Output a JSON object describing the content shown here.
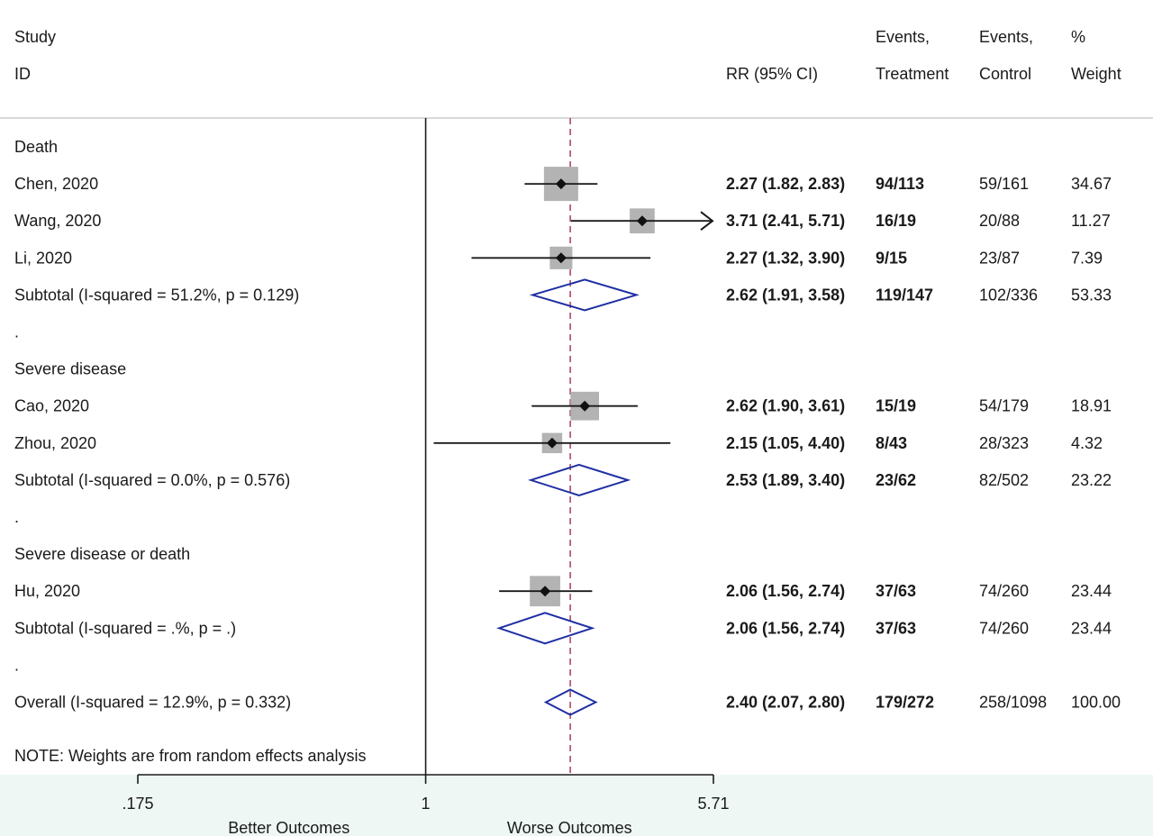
{
  "chart_data": {
    "type": "forest",
    "headers": {
      "study_line1": "Study",
      "study_line2": "ID",
      "rr": "RR (95% CI)",
      "events_t_line1": "Events,",
      "events_t_line2": "Treatment",
      "events_c_line1": "Events,",
      "events_c_line2": "Control",
      "weight_line1": "%",
      "weight_line2": "Weight"
    },
    "scale": "log",
    "xlim": [
      0.175,
      5.71
    ],
    "reference_line": 1,
    "overall_line": 2.4,
    "x_ticks": [
      {
        "value": 0.175,
        "label": ".175"
      },
      {
        "value": 1,
        "label": "1"
      },
      {
        "value": 5.71,
        "label": "5.71"
      }
    ],
    "direction_labels": {
      "left": "Better Outcomes",
      "right": "Worse Outcomes"
    },
    "note": "NOTE: Weights are from random effects analysis",
    "rows": [
      {
        "kind": "group",
        "label": "Death"
      },
      {
        "kind": "study",
        "label": "Chen, 2020",
        "rr": 2.27,
        "lo": 1.82,
        "hi": 2.83,
        "ci_text": "2.27 (1.82, 2.83)",
        "events_t": "94/113",
        "events_c": "59/161",
        "weight": "34.67"
      },
      {
        "kind": "study",
        "label": "Wang, 2020",
        "rr": 3.71,
        "lo": 2.41,
        "hi": 5.71,
        "ci_text": "3.71 (2.41, 5.71)",
        "events_t": "16/19",
        "events_c": "20/88",
        "weight": "11.27"
      },
      {
        "kind": "study",
        "label": "Li, 2020",
        "rr": 2.27,
        "lo": 1.32,
        "hi": 3.9,
        "ci_text": "2.27 (1.32, 3.90)",
        "events_t": "9/15",
        "events_c": "23/87",
        "weight": "7.39"
      },
      {
        "kind": "subtotal",
        "label": "Subtotal  (I-squared = 51.2%, p = 0.129)",
        "rr": 2.62,
        "lo": 1.91,
        "hi": 3.58,
        "ci_text": "2.62 (1.91, 3.58)",
        "events_t": "119/147",
        "events_c": "102/336",
        "weight": "53.33"
      },
      {
        "kind": "spacer",
        "label": "."
      },
      {
        "kind": "group",
        "label": "Severe disease"
      },
      {
        "kind": "study",
        "label": "Cao, 2020",
        "rr": 2.62,
        "lo": 1.9,
        "hi": 3.61,
        "ci_text": "2.62 (1.90, 3.61)",
        "events_t": "15/19",
        "events_c": "54/179",
        "weight": "18.91"
      },
      {
        "kind": "study",
        "label": "Zhou, 2020",
        "rr": 2.15,
        "lo": 1.05,
        "hi": 4.4,
        "ci_text": "2.15 (1.05, 4.40)",
        "events_t": "8/43",
        "events_c": "28/323",
        "weight": "4.32"
      },
      {
        "kind": "subtotal",
        "label": "Subtotal  (I-squared = 0.0%, p = 0.576)",
        "rr": 2.53,
        "lo": 1.89,
        "hi": 3.4,
        "ci_text": "2.53 (1.89, 3.40)",
        "events_t": "23/62",
        "events_c": "82/502",
        "weight": "23.22"
      },
      {
        "kind": "spacer",
        "label": "."
      },
      {
        "kind": "group",
        "label": "Severe disease or death"
      },
      {
        "kind": "study",
        "label": "Hu, 2020",
        "rr": 2.06,
        "lo": 1.56,
        "hi": 2.74,
        "ci_text": "2.06 (1.56, 2.74)",
        "events_t": "37/63",
        "events_c": "74/260",
        "weight": "23.44"
      },
      {
        "kind": "subtotal",
        "label": "Subtotal  (I-squared = .%, p = .)",
        "rr": 2.06,
        "lo": 1.56,
        "hi": 2.74,
        "ci_text": "2.06 (1.56, 2.74)",
        "events_t": "37/63",
        "events_c": "74/260",
        "weight": "23.44"
      },
      {
        "kind": "spacer",
        "label": "."
      },
      {
        "kind": "overall",
        "label": "Overall  (I-squared = 12.9%, p = 0.332)",
        "rr": 2.4,
        "lo": 2.07,
        "hi": 2.8,
        "ci_text": "2.40 (2.07, 2.80)",
        "events_t": "179/272",
        "events_c": "258/1098",
        "weight": "100.00"
      }
    ],
    "colors": {
      "box": "#b3b3b3",
      "diamond": "#1f2fa3",
      "dashed_line": "#a0304a",
      "axis_band": "#eef7f4",
      "line": "#1a1a1a"
    }
  }
}
